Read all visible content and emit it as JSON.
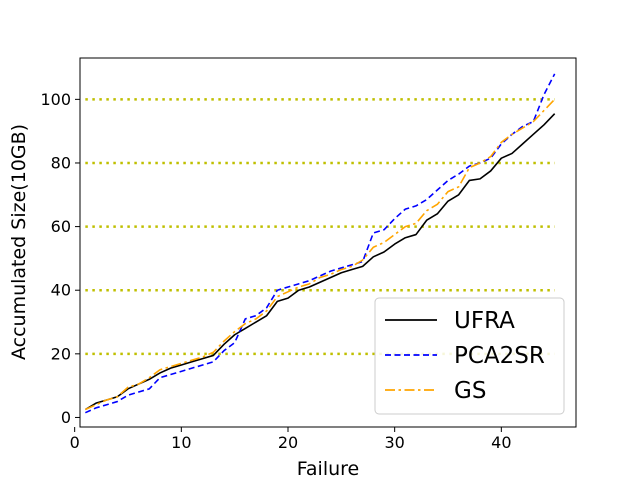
{
  "chart_data": {
    "type": "line",
    "xlabel": "Failure",
    "ylabel": "Accumulated Size(10GB)",
    "xlim": [
      0.5,
      47.0
    ],
    "ylim": [
      -3.0,
      113.0
    ],
    "x_ticks": [
      0,
      10,
      20,
      30,
      40
    ],
    "y_ticks": [
      0,
      20,
      40,
      60,
      80,
      100
    ],
    "grid": false,
    "legend_position": "lower right",
    "reference_lines": {
      "y": [
        20,
        40,
        60,
        80,
        100
      ],
      "x_range": [
        1,
        45
      ],
      "color": "#bfbf00",
      "style": "dotted"
    },
    "x": [
      1,
      2,
      3,
      4,
      5,
      6,
      7,
      8,
      9,
      10,
      11,
      12,
      13,
      14,
      15,
      16,
      17,
      18,
      19,
      20,
      21,
      22,
      23,
      24,
      25,
      26,
      27,
      28,
      29,
      30,
      31,
      32,
      33,
      34,
      35,
      36,
      37,
      38,
      39,
      40,
      41,
      42,
      43,
      44,
      45
    ],
    "series": [
      {
        "name": "UFRA",
        "color": "#000000",
        "style": "solid",
        "values": [
          2.5,
          4.5,
          5.5,
          6.5,
          9,
          10.5,
          12,
          14,
          15.5,
          16.5,
          17.5,
          18.5,
          19.5,
          23,
          26,
          28,
          30,
          32,
          36.5,
          37.5,
          40,
          41,
          42.5,
          44,
          45.5,
          46.5,
          47.5,
          50.5,
          52,
          54.5,
          56.5,
          57.5,
          62,
          64,
          68,
          70,
          74.5,
          75,
          77.5,
          81.5,
          83,
          86,
          89,
          92,
          95.5
        ]
      },
      {
        "name": "PCA2SR",
        "color": "#0000ff",
        "style": "dashed",
        "values": [
          1.5,
          3,
          4,
          5,
          7,
          8,
          9,
          12.5,
          13.5,
          14.5,
          15.5,
          16.5,
          17.5,
          21,
          23.5,
          31,
          32,
          34.5,
          40,
          41,
          42,
          43,
          44.5,
          46,
          47,
          48,
          49,
          58,
          59,
          62.5,
          65.5,
          66.5,
          68.5,
          71.5,
          74.5,
          76.5,
          79,
          80,
          81.5,
          86,
          89,
          91.5,
          93,
          101.5,
          108
        ]
      },
      {
        "name": "GS",
        "color": "#ffa500",
        "style": "dashdot",
        "values": [
          2.5,
          4,
          5.5,
          6.5,
          9.5,
          10.5,
          12.5,
          15,
          16,
          17,
          18,
          19,
          20.5,
          24,
          27,
          29.5,
          31,
          33.5,
          38,
          39.5,
          41,
          42,
          44,
          45,
          46.5,
          47.5,
          49.5,
          53.5,
          55,
          57.5,
          60,
          61,
          65,
          67,
          71,
          72.5,
          78.5,
          80,
          82,
          86.5,
          89,
          91,
          93,
          96.5,
          100
        ]
      }
    ]
  }
}
